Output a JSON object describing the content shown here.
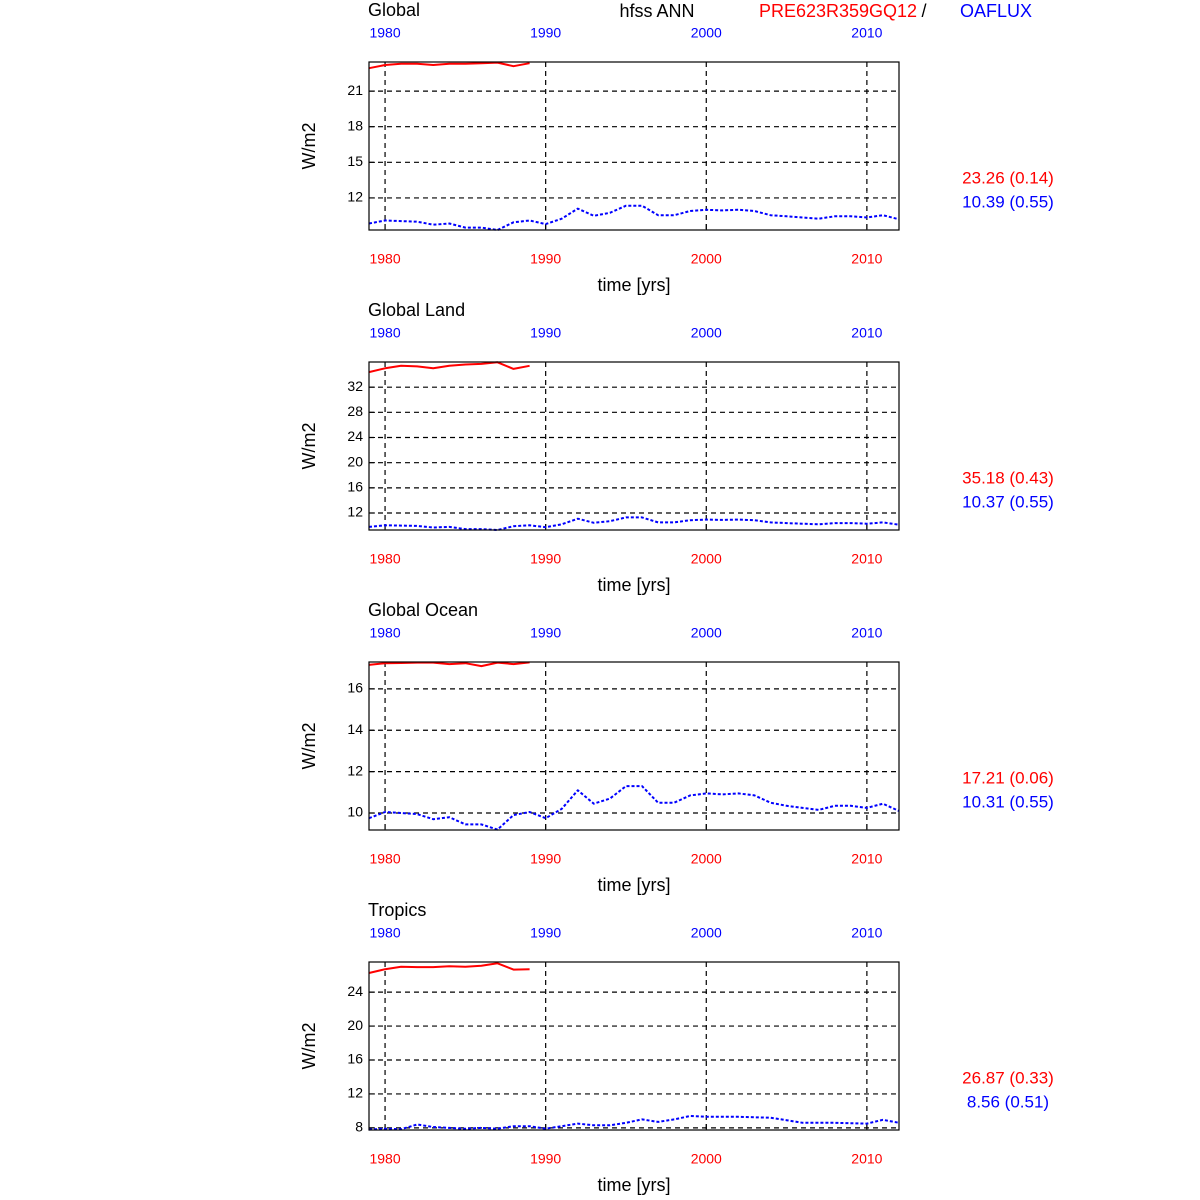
{
  "header": {
    "title": "hfss ANN",
    "model": "PRE623R359GQ12",
    "separator": "/",
    "obs": "OAFLUX"
  },
  "chart_data": [
    {
      "type": "line",
      "title": "Global",
      "xlabel": "time [yrs]",
      "ylabel": "W/m2",
      "grid": true,
      "x": [
        1979,
        1980,
        1981,
        1982,
        1983,
        1984,
        1985,
        1986,
        1987,
        1988,
        1989,
        1990,
        1991,
        1992,
        1993,
        1994,
        1995,
        1996,
        1997,
        1998,
        1999,
        2000,
        2001,
        2002,
        2003,
        2004,
        2005,
        2006,
        2007,
        2008,
        2009,
        2010,
        2011,
        2012
      ],
      "xlim": [
        1979,
        2012
      ],
      "xticks": [
        1980,
        1990,
        2000,
        2010
      ],
      "ylim": [
        9.3,
        23.45
      ],
      "yticks": [
        12,
        15,
        18,
        21
      ],
      "series": [
        {
          "color": "#ff0000",
          "linestyle": "solid",
          "stat": "23.26 (0.14)",
          "values": [
            22.93,
            23.2,
            23.3,
            23.3,
            23.2,
            23.3,
            23.3,
            23.35,
            23.4,
            23.1,
            23.35,
            null,
            null,
            null,
            null,
            null,
            null,
            null,
            null,
            null,
            null,
            null,
            null,
            null,
            null,
            null,
            null,
            null,
            null,
            null,
            null,
            null,
            null,
            null
          ]
        },
        {
          "color": "#0000ff",
          "linestyle": "dashed",
          "stat": "10.39 (0.55)",
          "values": [
            9.85,
            10.1,
            10.05,
            10.0,
            9.75,
            9.85,
            9.5,
            9.5,
            9.3,
            9.95,
            10.1,
            9.8,
            10.25,
            11.1,
            10.5,
            10.75,
            11.35,
            11.35,
            10.55,
            10.55,
            10.9,
            11.0,
            10.95,
            11.0,
            10.9,
            10.55,
            10.45,
            10.35,
            10.25,
            10.45,
            10.45,
            10.35,
            10.55,
            10.2
          ]
        }
      ]
    },
    {
      "type": "line",
      "title": "Global Land",
      "xlabel": "time [yrs]",
      "ylabel": "W/m2",
      "grid": true,
      "x": [
        1979,
        1980,
        1981,
        1982,
        1983,
        1984,
        1985,
        1986,
        1987,
        1988,
        1989,
        1990,
        1991,
        1992,
        1993,
        1994,
        1995,
        1996,
        1997,
        1998,
        1999,
        2000,
        2001,
        2002,
        2003,
        2004,
        2005,
        2006,
        2007,
        2008,
        2009,
        2010,
        2011,
        2012
      ],
      "xlim": [
        1979,
        2012
      ],
      "xticks": [
        1980,
        1990,
        2000,
        2010
      ],
      "ylim": [
        9.3,
        36
      ],
      "yticks": [
        12,
        16,
        20,
        24,
        28,
        32
      ],
      "series": [
        {
          "color": "#ff0000",
          "linestyle": "solid",
          "stat": "35.18 (0.43)",
          "values": [
            34.4,
            35.0,
            35.4,
            35.3,
            35.0,
            35.4,
            35.6,
            35.7,
            35.95,
            34.9,
            35.4,
            null,
            null,
            null,
            null,
            null,
            null,
            null,
            null,
            null,
            null,
            null,
            null,
            null,
            null,
            null,
            null,
            null,
            null,
            null,
            null,
            null,
            null,
            null
          ]
        },
        {
          "color": "#0000ff",
          "linestyle": "dashed",
          "stat": "10.37 (0.55)",
          "values": [
            9.8,
            10.05,
            10.0,
            9.95,
            9.7,
            9.8,
            9.45,
            9.45,
            9.3,
            9.9,
            10.05,
            9.75,
            10.2,
            11.1,
            10.45,
            10.7,
            11.3,
            11.3,
            10.5,
            10.5,
            10.85,
            10.95,
            10.9,
            10.95,
            10.85,
            10.5,
            10.4,
            10.3,
            10.2,
            10.4,
            10.4,
            10.3,
            10.5,
            10.15
          ]
        }
      ]
    },
    {
      "type": "line",
      "title": "Global Ocean",
      "xlabel": "time [yrs]",
      "ylabel": "W/m2",
      "grid": true,
      "x": [
        1979,
        1980,
        1981,
        1982,
        1983,
        1984,
        1985,
        1986,
        1987,
        1988,
        1989,
        1990,
        1991,
        1992,
        1993,
        1994,
        1995,
        1996,
        1997,
        1998,
        1999,
        2000,
        2001,
        2002,
        2003,
        2004,
        2005,
        2006,
        2007,
        2008,
        2009,
        2010,
        2011,
        2012
      ],
      "xlim": [
        1979,
        2012
      ],
      "xticks": [
        1980,
        1990,
        2000,
        2010
      ],
      "ylim": [
        9.18,
        17.3
      ],
      "yticks": [
        10,
        12,
        14,
        16
      ],
      "series": [
        {
          "color": "#ff0000",
          "linestyle": "solid",
          "stat": "17.21 (0.06)",
          "values": [
            17.16,
            17.24,
            17.25,
            17.27,
            17.27,
            17.2,
            17.24,
            17.1,
            17.27,
            17.2,
            17.28,
            null,
            null,
            null,
            null,
            null,
            null,
            null,
            null,
            null,
            null,
            null,
            null,
            null,
            null,
            null,
            null,
            null,
            null,
            null,
            null,
            null,
            null,
            null
          ]
        },
        {
          "color": "#0000ff",
          "linestyle": "dashed",
          "stat": "10.31 (0.55)",
          "values": [
            9.75,
            10.05,
            10.0,
            9.95,
            9.7,
            9.8,
            9.45,
            9.45,
            9.2,
            9.9,
            10.05,
            9.75,
            10.2,
            11.1,
            10.45,
            10.7,
            11.3,
            11.3,
            10.5,
            10.5,
            10.85,
            10.95,
            10.9,
            10.95,
            10.85,
            10.5,
            10.35,
            10.25,
            10.15,
            10.35,
            10.35,
            10.25,
            10.45,
            10.1
          ]
        }
      ]
    },
    {
      "type": "line",
      "title": "Tropics",
      "xlabel": "time [yrs]",
      "ylabel": "W/m2",
      "grid": true,
      "x": [
        1979,
        1980,
        1981,
        1982,
        1983,
        1984,
        1985,
        1986,
        1987,
        1988,
        1989,
        1990,
        1991,
        1992,
        1993,
        1994,
        1995,
        1996,
        1997,
        1998,
        1999,
        2000,
        2001,
        2002,
        2003,
        2004,
        2005,
        2006,
        2007,
        2008,
        2009,
        2010,
        2011,
        2012
      ],
      "xlim": [
        1979,
        2012
      ],
      "xticks": [
        1980,
        1990,
        2000,
        2010
      ],
      "ylim": [
        7.75,
        27.55
      ],
      "yticks": [
        8,
        12,
        16,
        20,
        24
      ],
      "series": [
        {
          "color": "#ff0000",
          "linestyle": "solid",
          "stat": "26.87 (0.33)",
          "values": [
            26.25,
            26.7,
            27.0,
            26.95,
            26.95,
            27.05,
            27.0,
            27.1,
            27.4,
            26.65,
            26.7,
            null,
            null,
            null,
            null,
            null,
            null,
            null,
            null,
            null,
            null,
            null,
            null,
            null,
            null,
            null,
            null,
            null,
            null,
            null,
            null,
            null,
            null,
            null
          ]
        },
        {
          "color": "#0000ff",
          "linestyle": "dashed",
          "stat": "8.56 (0.51)",
          "values": [
            7.8,
            7.9,
            7.85,
            8.4,
            8.1,
            8.0,
            7.9,
            8.0,
            7.9,
            8.2,
            8.2,
            7.9,
            8.2,
            8.5,
            8.3,
            8.3,
            8.6,
            9.0,
            8.7,
            9.0,
            9.4,
            9.3,
            9.3,
            9.3,
            9.25,
            9.2,
            8.9,
            8.6,
            8.6,
            8.6,
            8.55,
            8.5,
            8.95,
            8.6
          ]
        }
      ]
    }
  ]
}
